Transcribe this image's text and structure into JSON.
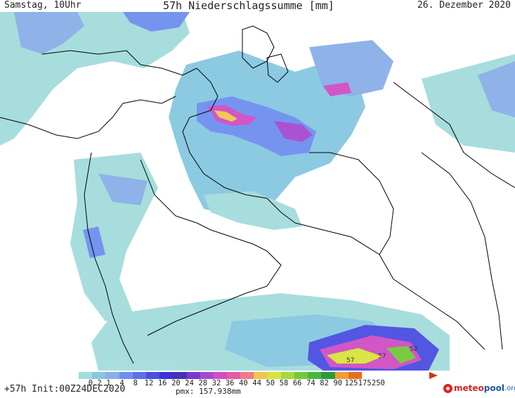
{
  "header": {
    "left": "Samstag, 10Uhr",
    "center": "57h Niederschlagssumme [mm]",
    "right": "26. Dezember 2020"
  },
  "footer": {
    "left": "+57h Init:00Z24DEC2020",
    "center": "pmx: 157.938mm"
  },
  "logo": {
    "part1": "meteo",
    "part2": "pool",
    "suffix": ".org"
  },
  "legend": {
    "labels": [
      "0.2",
      "1",
      "4",
      "8",
      "12",
      "16",
      "20",
      "24",
      "28",
      "32",
      "36",
      "40",
      "44",
      "50",
      "58",
      "66",
      "74",
      "82",
      "90",
      "125",
      "175",
      "250"
    ],
    "colors": [
      "#a3dcdc",
      "#86c8e0",
      "#8aaee8",
      "#6e8ff0",
      "#5e6fe8",
      "#4a4ee0",
      "#3a32d8",
      "#4a2fb8",
      "#7a3ac8",
      "#a64ad0",
      "#d04ec4",
      "#e65aa6",
      "#ee7a8a",
      "#f0c64e",
      "#d8e43a",
      "#a6d83a",
      "#74c83a",
      "#4ab83a",
      "#2e9a3a",
      "#f0a030",
      "#e86e1e",
      "#cc3a00"
    ]
  },
  "map_labels": [
    {
      "text": "57",
      "kind": "local-maximum"
    },
    {
      "text": "57",
      "kind": "local-maximum"
    },
    {
      "text": "52",
      "kind": "local-maximum"
    }
  ]
}
